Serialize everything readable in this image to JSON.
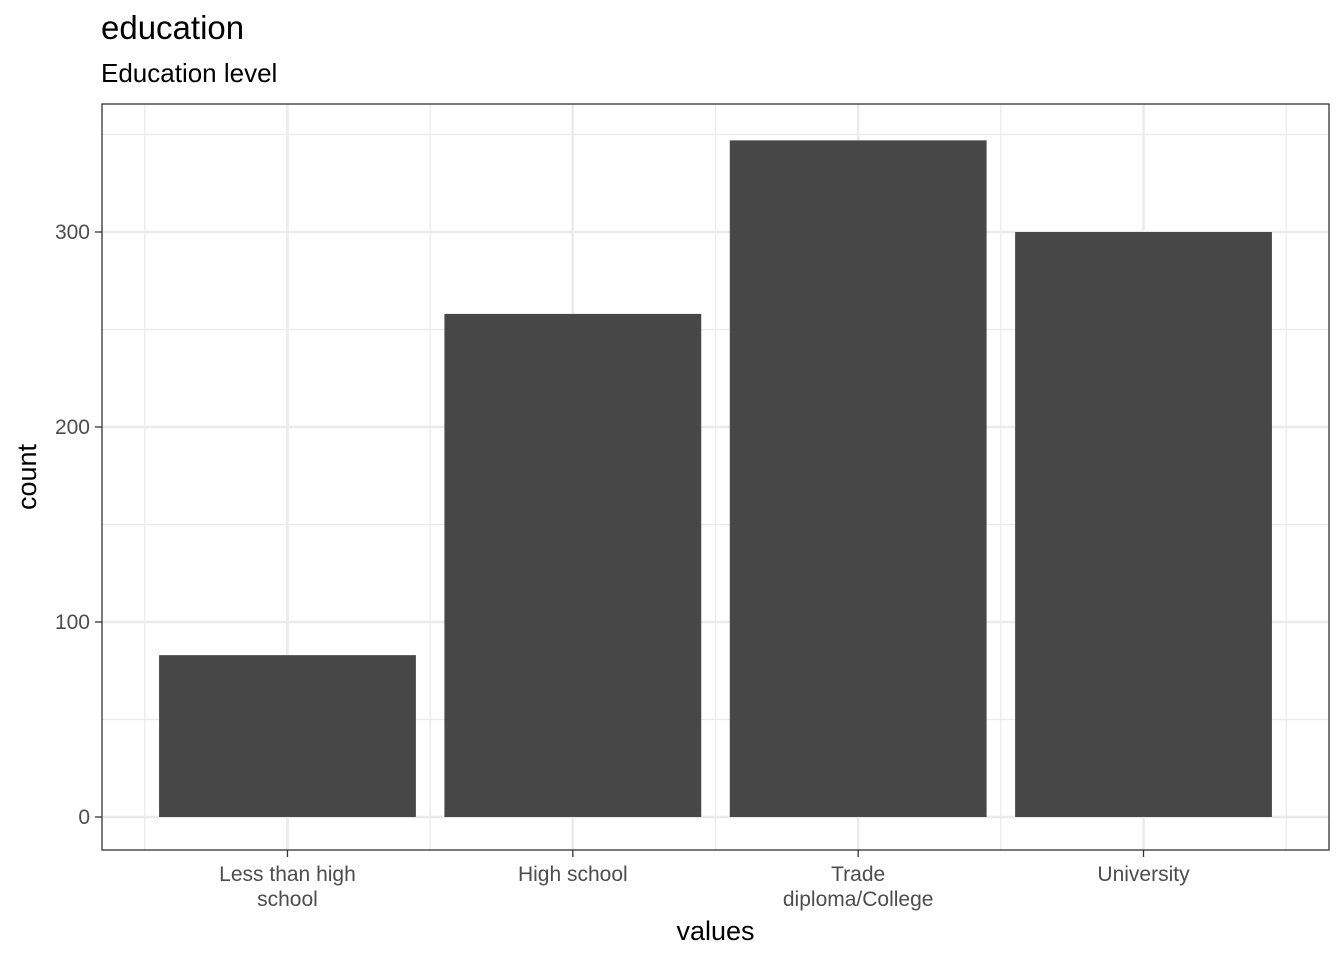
{
  "title": "education",
  "subtitle": "Education level",
  "chart_data": {
    "type": "bar",
    "categories": [
      [
        "Less than high",
        "school"
      ],
      [
        "High school"
      ],
      [
        "Trade",
        "diploma/College"
      ],
      [
        "University"
      ]
    ],
    "values": [
      83,
      258,
      347,
      300
    ],
    "xlabel": "values",
    "ylabel": "count",
    "ylim": [
      -17,
      364
    ],
    "yticks": [
      0,
      100,
      200,
      300
    ],
    "grid": true,
    "bar_color": "#474747",
    "grid_color": "#ebebeb",
    "panel_border_color": "#333333"
  }
}
